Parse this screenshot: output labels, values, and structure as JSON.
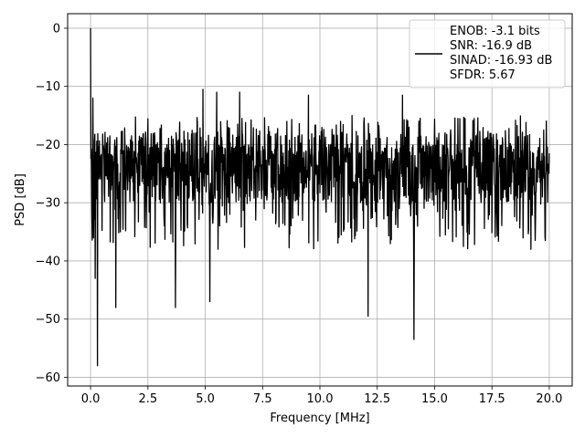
{
  "chart_data": {
    "type": "line",
    "title": "",
    "xlabel": "Frequency [MHz]",
    "ylabel": "PSD [dB]",
    "xlim": [
      -1.0,
      21.0
    ],
    "ylim": [
      -61.5,
      2.5
    ],
    "xticks": [
      0.0,
      2.5,
      5.0,
      7.5,
      10.0,
      12.5,
      15.0,
      17.5,
      20.0
    ],
    "xtick_labels": [
      "0.0",
      "2.5",
      "5.0",
      "7.5",
      "10.0",
      "12.5",
      "15.0",
      "17.5",
      "20.0"
    ],
    "yticks": [
      0,
      -10,
      -20,
      -30,
      -40,
      -50,
      -60
    ],
    "ytick_labels": [
      "0",
      "−10",
      "−20",
      "−30",
      "−40",
      "−50",
      "−60"
    ],
    "grid": true,
    "legend_position": "top-right",
    "line_color": "#000000",
    "legend_lines": [
      "ENOB: -3.1 bits",
      "SNR: -16.9 dB",
      "SINAD: -16.93 dB",
      "SFDR: 5.67"
    ],
    "series": [
      {
        "x_start": 0.0,
        "x_end": 20.0,
        "peak": [
          0.0,
          0.0
        ],
        "floor_min": -20.0,
        "floor_max": -30.0,
        "notable_dips": [
          [
            0.2,
            -43
          ],
          [
            0.3,
            -58
          ],
          [
            1.1,
            -48
          ],
          [
            3.7,
            -48
          ],
          [
            5.2,
            -47
          ],
          [
            12.1,
            -49.5
          ],
          [
            14.1,
            -53.5
          ]
        ],
        "notable_peaks": [
          [
            0.1,
            -12
          ],
          [
            4.9,
            -10.5
          ],
          [
            5.5,
            -11
          ],
          [
            6.5,
            -11
          ],
          [
            9.5,
            -11.5
          ],
          [
            13.6,
            -11.5
          ]
        ]
      }
    ]
  }
}
